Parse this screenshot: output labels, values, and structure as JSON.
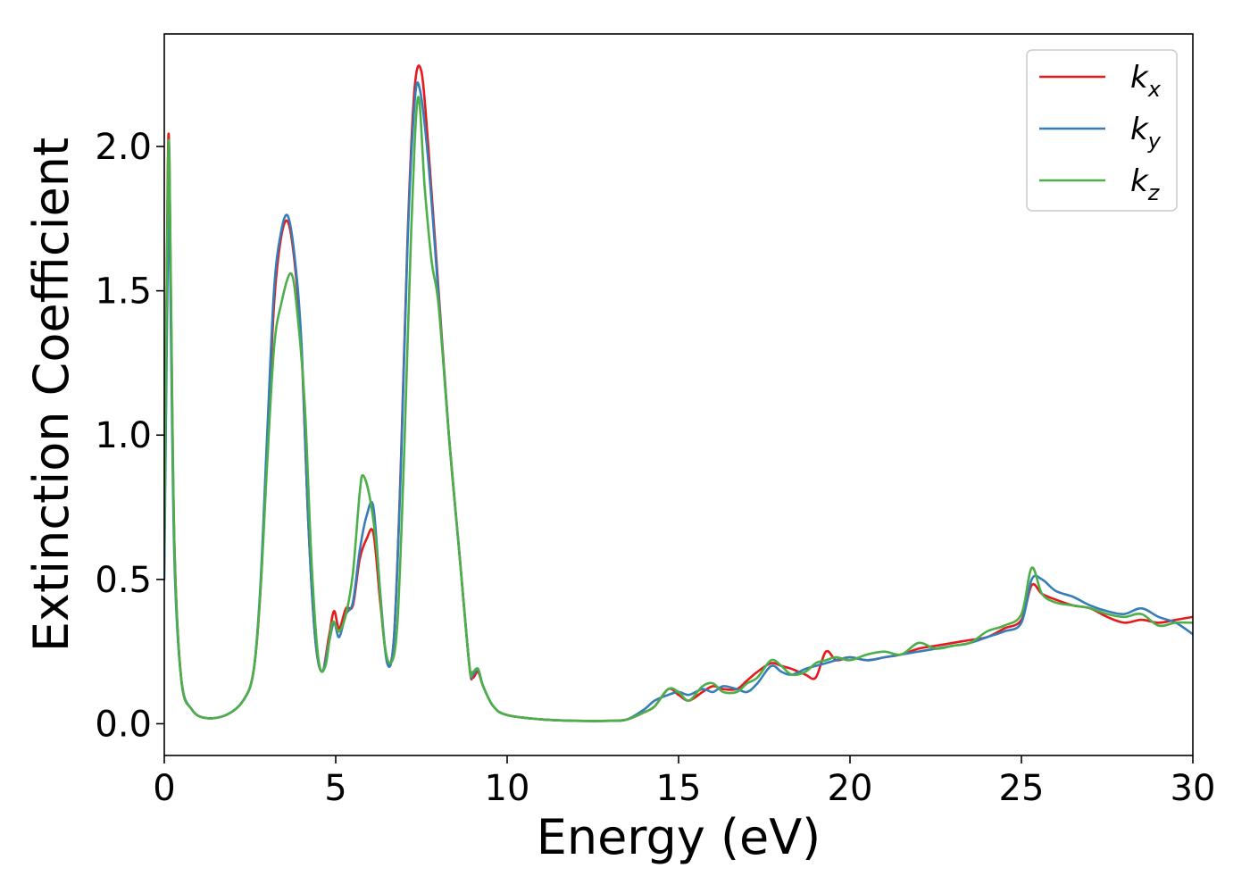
{
  "chart_data": {
    "type": "line",
    "xlabel": "Energy (eV)",
    "ylabel": "Extinction Coefficient",
    "xlim": [
      0,
      30
    ],
    "ylim": [
      -0.11,
      2.39
    ],
    "xticks": [
      0,
      5,
      10,
      15,
      20,
      25,
      30
    ],
    "yticks": [
      0.0,
      0.5,
      1.0,
      1.5,
      2.0
    ],
    "xtick_labels": [
      "0",
      "5",
      "10",
      "15",
      "20",
      "25",
      "30"
    ],
    "ytick_labels": [
      "0.0",
      "0.5",
      "1.0",
      "1.5",
      "2.0"
    ],
    "grid": false,
    "legend": "top-right",
    "series": [
      {
        "name": "k",
        "subscript": "x",
        "color": "#e41a1c",
        "x": [
          0,
          0.1,
          0.15,
          0.2,
          0.3,
          0.5,
          0.8,
          1.2,
          1.8,
          2.3,
          2.6,
          2.8,
          3.0,
          3.2,
          3.4,
          3.6,
          3.8,
          4.0,
          4.2,
          4.4,
          4.6,
          4.8,
          4.95,
          5.1,
          5.3,
          5.5,
          5.7,
          5.9,
          6.1,
          6.3,
          6.5,
          6.7,
          6.9,
          7.1,
          7.3,
          7.5,
          7.7,
          8.0,
          8.3,
          8.6,
          8.9,
          9.0,
          9.15,
          9.3,
          9.6,
          10.0,
          11.0,
          12.0,
          13.0,
          13.5,
          14.0,
          14.3,
          14.7,
          15.0,
          15.3,
          15.7,
          16.0,
          16.3,
          16.7,
          17.0,
          17.3,
          17.7,
          18.0,
          18.3,
          18.7,
          19.0,
          19.3,
          19.6,
          20.0,
          20.5,
          21.0,
          21.5,
          22.0,
          22.5,
          23.0,
          23.5,
          24.0,
          24.5,
          25.0,
          25.3,
          25.6,
          26.0,
          26.5,
          27.0,
          27.5,
          28.0,
          28.5,
          29.0,
          29.5,
          30.0
        ],
        "y": [
          0.55,
          1.9,
          1.95,
          1.4,
          0.6,
          0.15,
          0.05,
          0.02,
          0.03,
          0.08,
          0.18,
          0.45,
          0.95,
          1.45,
          1.68,
          1.74,
          1.6,
          1.3,
          0.7,
          0.3,
          0.18,
          0.3,
          0.39,
          0.33,
          0.4,
          0.41,
          0.57,
          0.64,
          0.66,
          0.42,
          0.22,
          0.3,
          0.9,
          1.7,
          2.2,
          2.26,
          2.0,
          1.5,
          1.0,
          0.6,
          0.2,
          0.16,
          0.18,
          0.13,
          0.06,
          0.03,
          0.015,
          0.01,
          0.01,
          0.015,
          0.04,
          0.06,
          0.12,
          0.1,
          0.08,
          0.11,
          0.13,
          0.12,
          0.12,
          0.15,
          0.18,
          0.21,
          0.2,
          0.19,
          0.17,
          0.16,
          0.25,
          0.22,
          0.23,
          0.22,
          0.23,
          0.24,
          0.26,
          0.27,
          0.28,
          0.29,
          0.3,
          0.33,
          0.36,
          0.48,
          0.45,
          0.43,
          0.41,
          0.4,
          0.37,
          0.35,
          0.36,
          0.35,
          0.36,
          0.37
        ]
      },
      {
        "name": "k",
        "subscript": "y",
        "color": "#377eb8",
        "x": [
          0,
          0.1,
          0.15,
          0.2,
          0.3,
          0.5,
          0.8,
          1.2,
          1.8,
          2.3,
          2.6,
          2.8,
          3.0,
          3.2,
          3.4,
          3.6,
          3.8,
          4.0,
          4.2,
          4.4,
          4.6,
          4.8,
          4.95,
          5.1,
          5.3,
          5.5,
          5.7,
          5.9,
          6.1,
          6.3,
          6.5,
          6.7,
          6.9,
          7.1,
          7.3,
          7.45,
          7.7,
          8.0,
          8.3,
          8.6,
          8.9,
          9.0,
          9.15,
          9.3,
          9.6,
          10.0,
          11.0,
          12.0,
          13.0,
          13.5,
          14.0,
          14.3,
          14.7,
          15.0,
          15.3,
          15.7,
          16.0,
          16.3,
          16.7,
          17.0,
          17.3,
          17.7,
          18.0,
          18.3,
          18.7,
          19.0,
          19.3,
          19.6,
          20.0,
          20.5,
          21.0,
          21.5,
          22.0,
          22.5,
          23.0,
          23.5,
          24.0,
          24.5,
          25.0,
          25.3,
          25.6,
          26.0,
          26.5,
          27.0,
          27.5,
          28.0,
          28.5,
          29.0,
          29.5,
          30.0
        ],
        "y": [
          0.5,
          1.6,
          1.78,
          1.3,
          0.55,
          0.15,
          0.05,
          0.02,
          0.03,
          0.08,
          0.18,
          0.47,
          1.0,
          1.5,
          1.7,
          1.76,
          1.62,
          1.32,
          0.7,
          0.3,
          0.18,
          0.28,
          0.35,
          0.3,
          0.38,
          0.42,
          0.6,
          0.72,
          0.75,
          0.45,
          0.21,
          0.3,
          0.88,
          1.68,
          2.15,
          2.2,
          1.95,
          1.48,
          1.0,
          0.6,
          0.2,
          0.17,
          0.19,
          0.13,
          0.06,
          0.03,
          0.015,
          0.01,
          0.01,
          0.015,
          0.05,
          0.08,
          0.1,
          0.11,
          0.1,
          0.12,
          0.11,
          0.13,
          0.12,
          0.11,
          0.14,
          0.2,
          0.18,
          0.17,
          0.19,
          0.2,
          0.21,
          0.22,
          0.23,
          0.22,
          0.23,
          0.24,
          0.25,
          0.26,
          0.27,
          0.28,
          0.3,
          0.32,
          0.35,
          0.5,
          0.5,
          0.46,
          0.44,
          0.41,
          0.39,
          0.38,
          0.4,
          0.37,
          0.35,
          0.31
        ]
      },
      {
        "name": "k",
        "subscript": "z",
        "color": "#4daf4a",
        "x": [
          0,
          0.1,
          0.15,
          0.2,
          0.3,
          0.5,
          0.8,
          1.2,
          1.8,
          2.3,
          2.6,
          2.8,
          3.0,
          3.2,
          3.4,
          3.7,
          3.9,
          4.1,
          4.3,
          4.5,
          4.7,
          4.9,
          5.1,
          5.3,
          5.5,
          5.7,
          5.8,
          6.0,
          6.2,
          6.4,
          6.6,
          6.8,
          7.0,
          7.2,
          7.4,
          7.6,
          7.8,
          8.0,
          8.3,
          8.6,
          8.9,
          9.0,
          9.15,
          9.3,
          9.6,
          10.0,
          11.0,
          12.0,
          13.0,
          13.5,
          14.0,
          14.3,
          14.7,
          15.0,
          15.3,
          15.7,
          16.0,
          16.3,
          16.7,
          17.0,
          17.3,
          17.7,
          18.0,
          18.3,
          18.7,
          19.0,
          19.3,
          19.6,
          20.0,
          20.5,
          21.0,
          21.5,
          22.0,
          22.5,
          23.0,
          23.5,
          24.0,
          24.5,
          25.0,
          25.3,
          25.6,
          26.0,
          26.5,
          27.0,
          27.5,
          28.0,
          28.5,
          29.0,
          29.5,
          30.0
        ],
        "y": [
          0.6,
          1.85,
          1.97,
          1.45,
          0.6,
          0.15,
          0.05,
          0.02,
          0.03,
          0.08,
          0.18,
          0.45,
          0.9,
          1.3,
          1.45,
          1.56,
          1.4,
          1.1,
          0.55,
          0.22,
          0.2,
          0.35,
          0.32,
          0.38,
          0.52,
          0.8,
          0.86,
          0.78,
          0.6,
          0.3,
          0.21,
          0.35,
          0.95,
          1.7,
          2.17,
          1.85,
          1.6,
          1.45,
          1.0,
          0.6,
          0.2,
          0.18,
          0.19,
          0.13,
          0.06,
          0.03,
          0.015,
          0.01,
          0.01,
          0.015,
          0.04,
          0.06,
          0.12,
          0.11,
          0.08,
          0.13,
          0.14,
          0.11,
          0.11,
          0.14,
          0.16,
          0.22,
          0.2,
          0.17,
          0.18,
          0.21,
          0.22,
          0.23,
          0.22,
          0.24,
          0.25,
          0.24,
          0.28,
          0.26,
          0.27,
          0.28,
          0.32,
          0.34,
          0.38,
          0.54,
          0.45,
          0.42,
          0.41,
          0.4,
          0.38,
          0.37,
          0.38,
          0.34,
          0.35,
          0.35
        ]
      }
    ]
  }
}
